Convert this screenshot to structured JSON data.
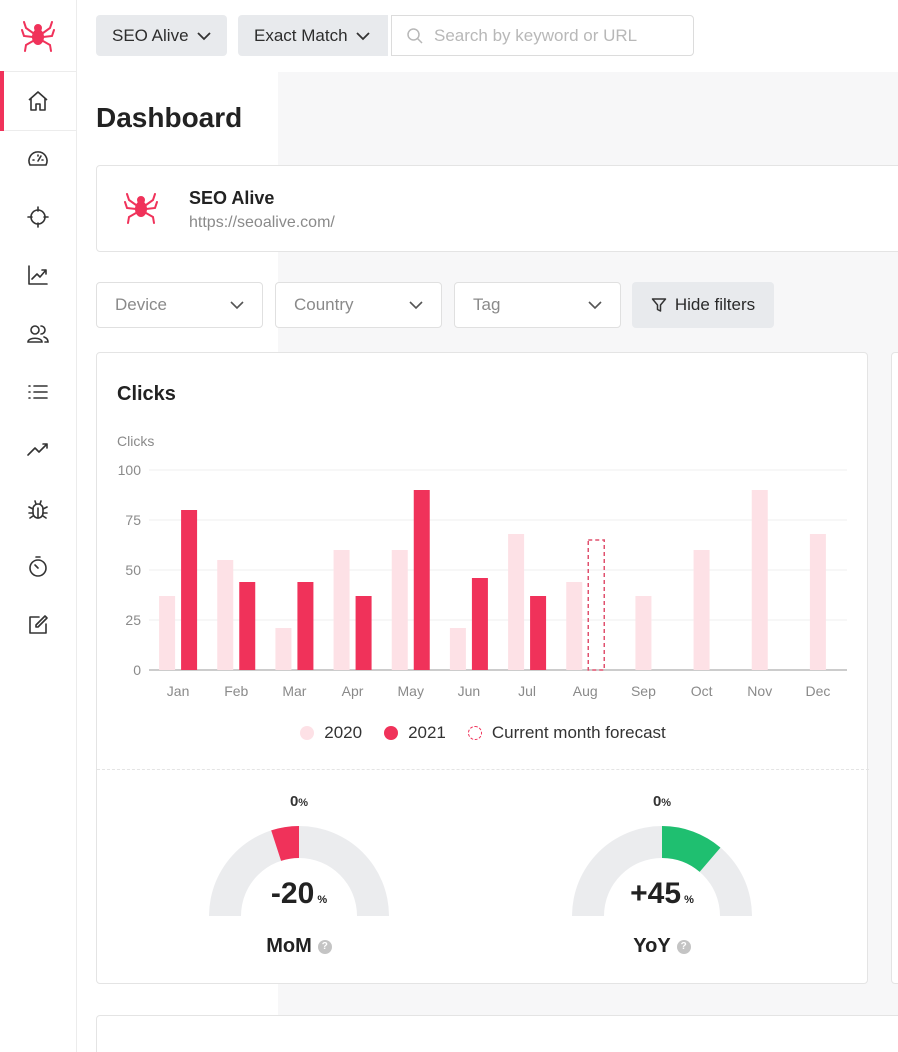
{
  "brand": {
    "accent": "#f0325a",
    "light": "#fde1e6",
    "green": "#1fbf70",
    "grey": "#ebecee"
  },
  "topbar": {
    "project_label": "SEO Alive",
    "match_label": "Exact Match",
    "search_placeholder": "Search by keyword or URL"
  },
  "sidebar": {
    "items": [
      {
        "icon": "home-icon"
      },
      {
        "icon": "speedometer-icon"
      },
      {
        "icon": "crosshair-icon"
      },
      {
        "icon": "chart-up-icon"
      },
      {
        "icon": "users-icon"
      },
      {
        "icon": "list-icon"
      },
      {
        "icon": "trend-icon"
      },
      {
        "icon": "bug-icon"
      },
      {
        "icon": "timer-icon"
      },
      {
        "icon": "edit-icon"
      }
    ]
  },
  "page": {
    "title": "Dashboard"
  },
  "site": {
    "name": "SEO Alive",
    "url": "https://seoalive.com/"
  },
  "filters": {
    "device": "Device",
    "country": "Country",
    "tag": "Tag",
    "hide_label": "Hide filters"
  },
  "chart_data": {
    "type": "bar",
    "title": "Clicks",
    "ylabel": "Clicks",
    "xlabel": "",
    "ylim": [
      0,
      100
    ],
    "yticks": [
      "0",
      "25",
      "50",
      "75",
      "100"
    ],
    "categories": [
      "Jan",
      "Feb",
      "Mar",
      "Apr",
      "May",
      "Jun",
      "Jul",
      "Aug",
      "Sep",
      "Oct",
      "Nov",
      "Dec"
    ],
    "series": [
      {
        "name": "2020",
        "values": [
          37,
          55,
          21,
          60,
          60,
          21,
          68,
          44,
          37,
          60,
          90,
          68
        ]
      },
      {
        "name": "2021",
        "values": [
          80,
          44,
          44,
          37,
          90,
          46,
          37,
          null,
          null,
          null,
          null,
          null
        ]
      },
      {
        "name": "Current month forecast",
        "values": [
          null,
          null,
          null,
          null,
          null,
          null,
          null,
          65,
          null,
          null,
          null,
          null
        ]
      }
    ],
    "legend": [
      "2020",
      "2021",
      "Current month forecast"
    ]
  },
  "gauges": {
    "mom": {
      "zero": "0",
      "value": "-20",
      "unit": "%",
      "name": "MoM",
      "fraction": -0.2
    },
    "yoy": {
      "zero": "0",
      "value": "+45",
      "unit": "%",
      "name": "YoY",
      "fraction": 0.45
    }
  }
}
